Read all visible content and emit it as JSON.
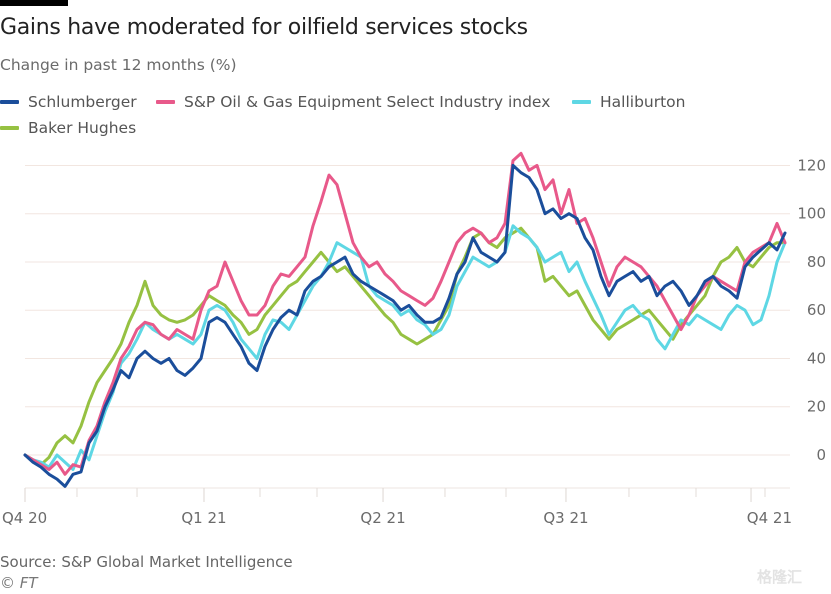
{
  "header": {
    "title": "Gains have moderated for oilfield services stocks",
    "subtitle": "Change in past 12 months (%)"
  },
  "footer": {
    "source": "Source: S&P Global Market Intelligence",
    "copyright": "© FT",
    "watermark": "格隆汇"
  },
  "chart_data": {
    "type": "line",
    "title": "Gains have moderated for oilfield services stocks",
    "subtitle": "Change in past 12 months (%)",
    "xlabel": "",
    "ylabel": "Change in past 12 months (%)",
    "ylim": [
      -15,
      125
    ],
    "yticks": [
      0,
      20,
      40,
      60,
      80,
      100,
      120
    ],
    "y_axis_position": "right",
    "grid": true,
    "legend_position": "top",
    "x_tick_labels": [
      "Q4 20",
      "Q1 21",
      "Q2 21",
      "Q3 21",
      "Q4 21"
    ],
    "x_tick_positions": [
      0,
      0.2355,
      0.4711,
      0.7118,
      0.9553
    ],
    "x_minor_ticks": [
      0.0684,
      0.1474,
      0.3092,
      0.3842,
      0.5526,
      0.6329,
      0.7947,
      0.8829,
      0.9737
    ],
    "x_range": [
      0,
      1
    ],
    "x": [
      0,
      0.0105,
      0.0211,
      0.0316,
      0.0421,
      0.0526,
      0.0632,
      0.0737,
      0.0842,
      0.0947,
      0.1053,
      0.1158,
      0.1263,
      0.1368,
      0.1474,
      0.1579,
      0.1684,
      0.1789,
      0.1895,
      0.2,
      0.2105,
      0.2211,
      0.2316,
      0.2421,
      0.2526,
      0.2632,
      0.2737,
      0.2842,
      0.2947,
      0.3053,
      0.3158,
      0.3263,
      0.3368,
      0.3474,
      0.3579,
      0.3684,
      0.3789,
      0.3895,
      0.4,
      0.4105,
      0.4211,
      0.4316,
      0.4421,
      0.4526,
      0.4632,
      0.4737,
      0.4842,
      0.4947,
      0.5053,
      0.5158,
      0.5263,
      0.5368,
      0.5474,
      0.5579,
      0.5684,
      0.5789,
      0.5895,
      0.6,
      0.6105,
      0.6211,
      0.6316,
      0.6421,
      0.6526,
      0.6632,
      0.6737,
      0.6842,
      0.6947,
      0.7053,
      0.7158,
      0.7263,
      0.7368,
      0.7474,
      0.7579,
      0.7684,
      0.7789,
      0.7895,
      0.8,
      0.8105,
      0.8211,
      0.8316,
      0.8421,
      0.8526,
      0.8632,
      0.8737,
      0.8842,
      0.8947,
      0.9053,
      0.9158,
      0.9263,
      0.9368,
      0.9474,
      0.9579,
      0.9684,
      0.9789,
      0.9895,
      1
    ],
    "series": [
      {
        "name": "Schlumberger",
        "color": "#1b4e9b",
        "values": [
          0,
          -3,
          -5,
          -8,
          -10,
          -13,
          -8,
          -7,
          5,
          10,
          20,
          27,
          35,
          32,
          40,
          43,
          40,
          38,
          40,
          35,
          33,
          36,
          40,
          55,
          57,
          55,
          50,
          45,
          38,
          35,
          45,
          52,
          57,
          60,
          58,
          68,
          72,
          74,
          78,
          80,
          82,
          75,
          72,
          70,
          68,
          66,
          64,
          60,
          62,
          58,
          55,
          55,
          57,
          65,
          75,
          80,
          90,
          84,
          82,
          80,
          84,
          120,
          117,
          115,
          110,
          100,
          102,
          98,
          100,
          98,
          90,
          85,
          74,
          66,
          72,
          74,
          76,
          72,
          74,
          66,
          70,
          72,
          68,
          62,
          66,
          72,
          74,
          70,
          68,
          65,
          78,
          82,
          85,
          88,
          85,
          92
        ]
      },
      {
        "name": "S&P Oil & Gas Equipment Select Industry index",
        "color": "#e8598a",
        "values": [
          0,
          -2,
          -4,
          -6,
          -3,
          -8,
          -4,
          -5,
          6,
          12,
          22,
          30,
          40,
          45,
          52,
          55,
          54,
          50,
          48,
          52,
          50,
          48,
          60,
          68,
          70,
          80,
          72,
          64,
          58,
          58,
          62,
          70,
          75,
          74,
          78,
          82,
          95,
          105,
          116,
          112,
          100,
          88,
          82,
          78,
          80,
          75,
          72,
          68,
          66,
          64,
          62,
          65,
          72,
          80,
          88,
          92,
          94,
          92,
          88,
          90,
          96,
          122,
          125,
          118,
          120,
          110,
          114,
          100,
          110,
          96,
          98,
          90,
          80,
          70,
          78,
          82,
          80,
          78,
          74,
          70,
          64,
          58,
          52,
          58,
          66,
          70,
          74,
          72,
          70,
          68,
          80,
          84,
          86,
          88,
          96,
          88
        ]
      },
      {
        "name": "Halliburton",
        "color": "#5ed7e4",
        "values": [
          0,
          -2,
          -3,
          -5,
          0,
          -3,
          -6,
          2,
          -2,
          8,
          18,
          26,
          38,
          42,
          48,
          55,
          52,
          50,
          48,
          50,
          48,
          46,
          50,
          60,
          62,
          60,
          55,
          48,
          44,
          40,
          50,
          56,
          55,
          52,
          58,
          64,
          70,
          74,
          80,
          88,
          86,
          84,
          82,
          70,
          66,
          64,
          62,
          58,
          60,
          56,
          54,
          50,
          52,
          58,
          70,
          76,
          82,
          80,
          78,
          80,
          84,
          95,
          92,
          90,
          86,
          80,
          82,
          84,
          76,
          80,
          72,
          65,
          58,
          50,
          55,
          60,
          62,
          58,
          56,
          48,
          44,
          50,
          56,
          54,
          58,
          56,
          54,
          52,
          58,
          62,
          60,
          54,
          56,
          66,
          80,
          88
        ]
      },
      {
        "name": "Baker Hughes",
        "color": "#96c142",
        "values": [
          0,
          -2,
          -4,
          -1,
          5,
          8,
          5,
          12,
          22,
          30,
          35,
          40,
          46,
          55,
          62,
          72,
          62,
          58,
          56,
          55,
          56,
          58,
          62,
          66,
          64,
          62,
          58,
          55,
          50,
          52,
          58,
          62,
          66,
          70,
          72,
          76,
          80,
          84,
          80,
          76,
          78,
          74,
          70,
          66,
          62,
          58,
          55,
          50,
          48,
          46,
          48,
          50,
          56,
          62,
          75,
          82,
          90,
          92,
          88,
          86,
          90,
          92,
          94,
          90,
          86,
          72,
          74,
          70,
          66,
          68,
          62,
          56,
          52,
          48,
          52,
          54,
          56,
          58,
          60,
          56,
          52,
          48,
          54,
          58,
          62,
          66,
          74,
          80,
          82,
          86,
          80,
          78,
          82,
          86,
          88,
          88
        ]
      }
    ]
  }
}
